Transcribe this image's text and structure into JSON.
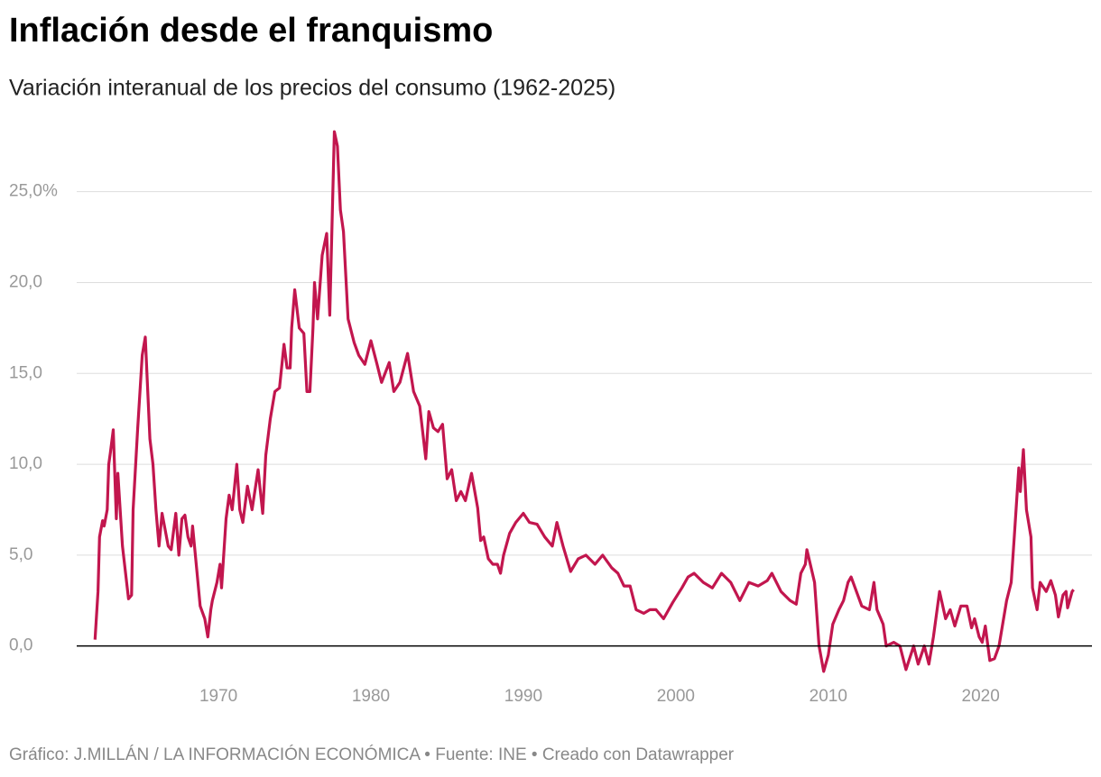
{
  "chart_data": {
    "type": "line",
    "title": "Inflación desde el franquismo",
    "subtitle": "Variación interanual de los precios del consumo (1962-2025)",
    "footer": "Gráfico: J.MILLÁN / LA INFORMACIÓN ECONÓMICA • Fuente: INE • Creado con Datawrapper",
    "x": [
      1961.9,
      1962.1,
      1962.2,
      1962.4,
      1962.5,
      1962.7,
      1962.8,
      1962.9,
      1963.1,
      1963.3,
      1963.4,
      1963.7,
      1964.1,
      1964.3,
      1964.4,
      1964.7,
      1965.0,
      1965.2,
      1965.5,
      1965.7,
      1965.9,
      1966.1,
      1966.3,
      1966.7,
      1966.9,
      1967.2,
      1967.4,
      1967.6,
      1967.8,
      1968.0,
      1968.2,
      1968.3,
      1968.6,
      1968.8,
      1969.1,
      1969.3,
      1969.5,
      1969.6,
      1969.9,
      1970.1,
      1970.2,
      1970.5,
      1970.7,
      1970.9,
      1971.2,
      1971.4,
      1971.6,
      1971.9,
      1972.2,
      1972.6,
      1972.9,
      1973.1,
      1973.4,
      1973.7,
      1974.0,
      1974.3,
      1974.5,
      1974.7,
      1974.8,
      1975.0,
      1975.3,
      1975.6,
      1975.8,
      1976.0,
      1976.2,
      1976.3,
      1976.5,
      1976.8,
      1977.1,
      1977.3,
      1977.6,
      1977.8,
      1978.0,
      1978.2,
      1978.5,
      1978.9,
      1979.2,
      1979.6,
      1980.0,
      1980.4,
      1980.7,
      1981.2,
      1981.5,
      1981.9,
      1982.4,
      1982.8,
      1983.2,
      1983.6,
      1983.8,
      1984.1,
      1984.4,
      1984.7,
      1985.0,
      1985.3,
      1985.6,
      1985.9,
      1986.2,
      1986.6,
      1987.0,
      1987.2,
      1987.4,
      1987.7,
      1988.0,
      1988.3,
      1988.5,
      1988.7,
      1989.1,
      1989.5,
      1990.0,
      1990.4,
      1990.9,
      1991.4,
      1991.9,
      1992.2,
      1992.6,
      1993.1,
      1993.6,
      1994.1,
      1994.7,
      1995.2,
      1995.8,
      1996.2,
      1996.6,
      1997.0,
      1997.4,
      1997.9,
      1998.3,
      1998.7,
      1999.2,
      1999.8,
      2000.4,
      2000.8,
      2001.2,
      2001.8,
      2002.4,
      2003.0,
      2003.6,
      2004.2,
      2004.8,
      2005.4,
      2006.0,
      2006.3,
      2006.9,
      2007.5,
      2007.9,
      2008.2,
      2008.5,
      2008.6,
      2009.1,
      2009.4,
      2009.7,
      2010.0,
      2010.3,
      2010.7,
      2011.0,
      2011.3,
      2011.5,
      2012.2,
      2012.7,
      2013.0,
      2013.2,
      2013.6,
      2013.8,
      2014.3,
      2014.7,
      2015.1,
      2015.6,
      2015.9,
      2016.3,
      2016.6,
      2016.9,
      2017.3,
      2017.7,
      2018.0,
      2018.3,
      2018.7,
      2019.1,
      2019.4,
      2019.6,
      2019.9,
      2020.1,
      2020.3,
      2020.6,
      2020.9,
      2021.2,
      2021.7,
      2022.0,
      2022.2,
      2022.5,
      2022.6,
      2022.8,
      2023.0,
      2023.3,
      2023.4,
      2023.7,
      2023.9,
      2024.3,
      2024.6,
      2024.9,
      2025.1,
      2025.4,
      2025.6,
      2025.7,
      2026.0,
      2026.1
    ],
    "series": [
      {
        "name": "Inflación",
        "color": "#c2164e",
        "values": [
          0.35,
          3,
          6,
          6.9,
          6.6,
          7.5,
          10,
          10.6,
          11.9,
          7,
          9.5,
          5.5,
          2.6,
          2.8,
          7.5,
          12,
          16,
          17,
          11.4,
          10,
          7.5,
          5.5,
          7.3,
          5.5,
          5.3,
          7.3,
          5,
          7,
          7.2,
          6,
          5.5,
          6.6,
          4,
          2.2,
          1.5,
          0.5,
          2,
          2.5,
          3.5,
          4.5,
          3.2,
          7,
          8.3,
          7.5,
          10,
          7.5,
          6.8,
          8.8,
          7.5,
          9.7,
          7.3,
          10.5,
          12.5,
          14,
          14.2,
          16.6,
          15.3,
          15.3,
          17.5,
          19.6,
          17.5,
          17.2,
          14,
          14,
          17.5,
          20,
          18,
          21.5,
          22.7,
          18.2,
          28.3,
          27.5,
          24,
          22.8,
          18,
          16.7,
          16,
          15.5,
          16.8,
          15.5,
          14.5,
          15.6,
          14,
          14.5,
          16.1,
          14,
          13.2,
          10.3,
          12.9,
          12,
          11.8,
          12.2,
          9.2,
          9.7,
          8,
          8.5,
          8,
          9.5,
          7.6,
          5.8,
          6,
          4.8,
          4.5,
          4.5,
          4,
          5,
          6.2,
          6.8,
          7.3,
          6.8,
          6.7,
          6,
          5.5,
          6.8,
          5.5,
          4.1,
          4.8,
          5,
          4.5,
          5,
          4.3,
          4,
          3.3,
          3.3,
          2,
          1.8,
          2,
          2,
          1.5,
          2.4,
          3.2,
          3.8,
          4,
          3.5,
          3.2,
          4,
          3.5,
          2.5,
          3.5,
          3.3,
          3.6,
          4,
          3,
          2.5,
          2.3,
          4,
          4.5,
          5.3,
          3.5,
          0,
          -1.4,
          -0.5,
          1.2,
          2,
          2.5,
          3.5,
          3.8,
          2.2,
          2,
          3.5,
          2,
          1.2,
          0,
          0.2,
          0,
          -1.3,
          0,
          -1,
          0,
          -1,
          0.5,
          3,
          1.5,
          2,
          1.1,
          2.2,
          2.2,
          1,
          1.5,
          0.5,
          0.2,
          1.1,
          -0.8,
          -0.7,
          0,
          2.5,
          3.5,
          6,
          9.8,
          8.5,
          10.8,
          7.5,
          6,
          3.2,
          2,
          3.5,
          3,
          3.6,
          2.8,
          1.6,
          2.8,
          3,
          2.1,
          3,
          3.1
        ]
      }
    ],
    "xlim": [
      1960.7,
      2027.3
    ],
    "ylim": [
      -2,
      29
    ],
    "xticks": [
      1970,
      1980,
      1990,
      2000,
      2010,
      2020
    ],
    "yticks": [
      {
        "value": 0,
        "label": "0,0"
      },
      {
        "value": 5,
        "label": "5,0"
      },
      {
        "value": 10,
        "label": "10,0"
      },
      {
        "value": 15,
        "label": "15,0"
      },
      {
        "value": 20,
        "label": "20,0"
      },
      {
        "value": 25,
        "label": "25,0%"
      }
    ],
    "grid": true
  }
}
